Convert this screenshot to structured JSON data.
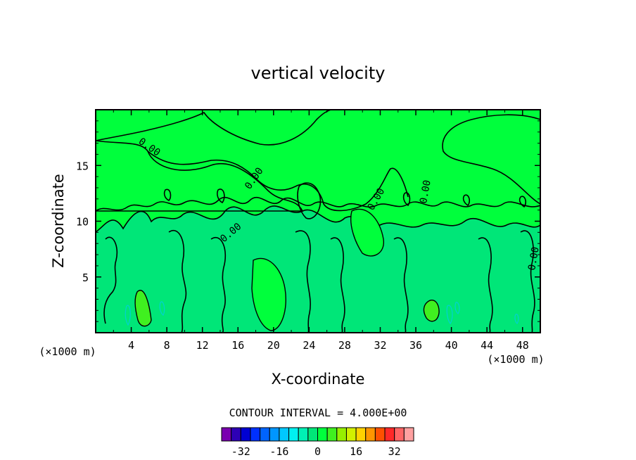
{
  "chart_data": {
    "type": "heatmap",
    "title": "vertical velocity",
    "xlabel": "X-coordinate",
    "ylabel": "Z-coordinate",
    "x_unit_label": "(×1000 m)",
    "y_unit_label": "(×1000 m)",
    "xlim": [
      0,
      50
    ],
    "ylim": [
      0,
      20
    ],
    "x_ticks": [
      4,
      8,
      12,
      16,
      20,
      24,
      28,
      32,
      36,
      40,
      44,
      48
    ],
    "x_tick_labels": [
      "4",
      "8",
      "12",
      "16",
      "20",
      "24",
      "28",
      "32",
      "36",
      "40",
      "44",
      "48"
    ],
    "y_ticks": [
      5,
      10,
      15
    ],
    "y_tick_labels": [
      "5",
      "10",
      "15"
    ],
    "contour_label_value": "0.00",
    "contour_interval_text": "CONTOUR INTERVAL = 4.000E+00",
    "colorbar": {
      "levels": [
        -36,
        -32,
        -28,
        -24,
        -20,
        -16,
        -12,
        -8,
        -4,
        0,
        4,
        8,
        12,
        16,
        20,
        24,
        28,
        32,
        36
      ],
      "colors": [
        "#7a00b0",
        "#2d00b4",
        "#0000d2",
        "#0030ff",
        "#0064ff",
        "#0096ff",
        "#00c8ff",
        "#00f0f0",
        "#00f0b4",
        "#00e678",
        "#00ff3c",
        "#40f020",
        "#96f000",
        "#d2f000",
        "#ffd200",
        "#ff9600",
        "#ff5000",
        "#ff2828",
        "#ff6464",
        "#ffa0a0"
      ],
      "tick_labels": [
        "-32",
        "-16",
        "0",
        "16",
        "32"
      ],
      "tick_values": [
        -32,
        -16,
        0,
        16,
        32
      ]
    },
    "background_color": "#00ff3c",
    "weak_updraft_color": "#40f020",
    "weak_downdraft_color": "#00e678",
    "contour_line_color": "#000000"
  }
}
